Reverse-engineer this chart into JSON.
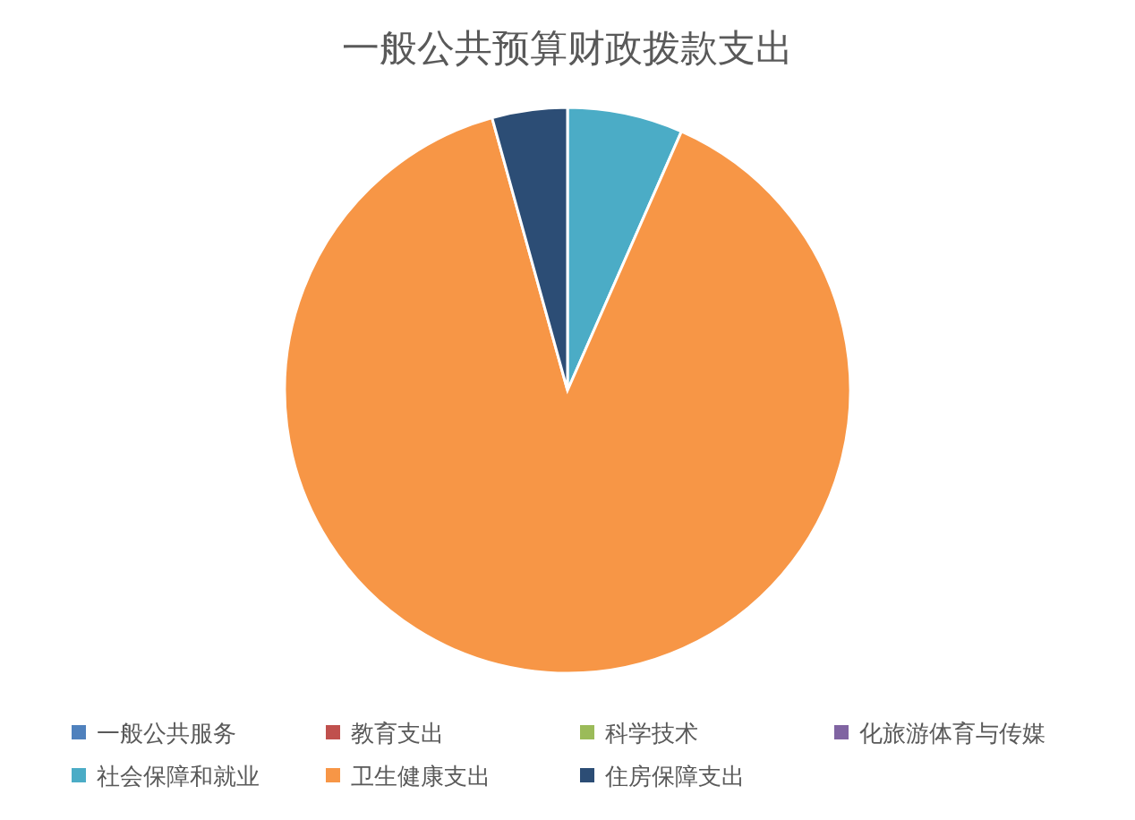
{
  "chart_data": {
    "type": "pie",
    "title": "一般公共预算财政拨款支出",
    "categories": [
      "一般公共服务",
      "教育支出",
      "科学技术",
      "化旅游体育与传媒",
      "社会保障和就业",
      "卫生健康支出",
      "住房保障支出"
    ],
    "values": [
      0,
      0,
      0,
      0,
      6.6,
      89.1,
      4.3
    ],
    "colors": [
      "#4f81bd",
      "#c0504d",
      "#9bbb59",
      "#8064a2",
      "#4bacc6",
      "#f79646",
      "#2c4d75"
    ],
    "legend": "bottom"
  }
}
